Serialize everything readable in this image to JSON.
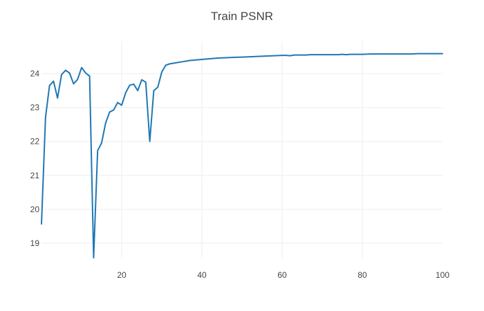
{
  "chart_data": {
    "type": "line",
    "title": "Train PSNR",
    "xlabel": "",
    "ylabel": "",
    "xlim": [
      0,
      100
    ],
    "ylim": [
      18.55,
      24.95
    ],
    "grid": true,
    "x_ticks": [
      20,
      40,
      60,
      80,
      100
    ],
    "y_ticks": [
      19,
      20,
      21,
      22,
      23,
      24
    ],
    "series": [
      {
        "color": "#1f77b4",
        "x": [
          0,
          1,
          2,
          3,
          4,
          5,
          6,
          7,
          8,
          9,
          10,
          11,
          12,
          13,
          14,
          15,
          16,
          17,
          18,
          19,
          20,
          21,
          22,
          23,
          24,
          25,
          26,
          27,
          28,
          29,
          30,
          31,
          32,
          33,
          34,
          35,
          36,
          37,
          38,
          39,
          40,
          42,
          44,
          46,
          48,
          50,
          52,
          54,
          56,
          58,
          60,
          61,
          62,
          63,
          64,
          65,
          66,
          67,
          68,
          69,
          70,
          72,
          74,
          75,
          76,
          77,
          78,
          80,
          82,
          84,
          86,
          88,
          90,
          92,
          94,
          96,
          98,
          100
        ],
        "y": [
          19.57,
          22.7,
          23.65,
          23.78,
          23.28,
          23.97,
          24.1,
          24.02,
          23.7,
          23.83,
          24.18,
          24.02,
          23.93,
          18.57,
          21.73,
          21.96,
          22.55,
          22.87,
          22.93,
          23.15,
          23.07,
          23.44,
          23.66,
          23.69,
          23.5,
          23.82,
          23.75,
          22.0,
          23.5,
          23.6,
          24.05,
          24.25,
          24.29,
          24.31,
          24.33,
          24.35,
          24.37,
          24.39,
          24.4,
          24.41,
          24.42,
          24.44,
          24.46,
          24.47,
          24.48,
          24.49,
          24.5,
          24.51,
          24.52,
          24.53,
          24.54,
          24.54,
          24.53,
          24.55,
          24.55,
          24.55,
          24.55,
          24.56,
          24.56,
          24.56,
          24.56,
          24.56,
          24.56,
          24.57,
          24.56,
          24.57,
          24.57,
          24.57,
          24.58,
          24.58,
          24.58,
          24.58,
          24.58,
          24.58,
          24.59,
          24.59,
          24.59,
          24.59
        ]
      }
    ]
  }
}
